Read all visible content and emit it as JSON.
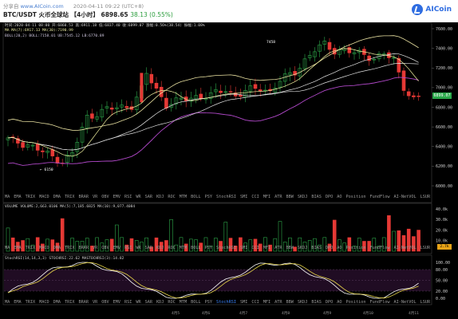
{
  "header": {
    "share_prefix": "分享自",
    "share_url": "www.AICoin.com",
    "share_time": "2020-04-11 09:22 (UTC+8)",
    "pair": "BTC/USDT 火币全球站 【4小时】",
    "last_price": "6898.65",
    "change": "38.13 (0.55%)",
    "logo_text": "AICoin"
  },
  "info": {
    "line1": "时间:2020-04-11 08:00  开:6860.53  高:6911.18  低:6837.40  收:6899.07  涨幅:0.56%(38.54)  振幅:1.08%",
    "ma_line": "MA    MA(7):6917.13   MA(30):7190.99",
    "boll_line": "BOLL(20,2)   BOLL:7158.01  UB:7545.12  LB:6770.89",
    "high_mark": "7458",
    "low_mark": "6150"
  },
  "price_axis": [
    "7600.00",
    "7400.00",
    "7200.00",
    "7000.00",
    "6800.00",
    "6600.00",
    "6400.00",
    "6200.00",
    "6000.00"
  ],
  "price_tag": "6899.07",
  "volume": {
    "legend": "VOLUME  VOLUME:2,663.0106   MA(5):7,185.6825   MA(10):9,077.4084",
    "axis": [
      "40.0k",
      "30.0k",
      "20.0k",
      "10.0k"
    ],
    "tag": "2.7k"
  },
  "stoch": {
    "legend": "StochRSI(14,14,3,3)   STOCHRSI:22.62   MASTOCHRSI(3):14.82",
    "axis": [
      "100.00",
      "80.00",
      "50.00",
      "20.00",
      "0.00"
    ]
  },
  "tabs": [
    "MA",
    "EMA",
    "TRIX",
    "MACD",
    "DMA",
    "TRIX",
    "BRAR",
    "VR",
    "OBV",
    "EMV",
    "RSI",
    "WR",
    "SAR",
    "KDJ",
    "ROC",
    "MTM",
    "BOLL",
    "PSY",
    "StochRSI",
    "SMI",
    "CCI",
    "MFI",
    "ATR",
    "BBW",
    "SKDJ",
    "BIAS",
    "DPO",
    "AO",
    "Position",
    "FundFlow",
    "AI-NetVOL",
    "LSUR"
  ],
  "active_tab": "StochRSI",
  "time_axis": [
    "4月5",
    "4月6",
    "4月7",
    "4月8",
    "4月9",
    "4月10",
    "4月11"
  ],
  "colors": {
    "up": "#e53935",
    "down": "#2ea84a",
    "ma7": "#f2f2a0",
    "ma30": "#e0e0e0",
    "boll_up": "#e8e0a0",
    "boll_mid": "#e8e8e8",
    "boll_low": "#b048c8"
  }
}
